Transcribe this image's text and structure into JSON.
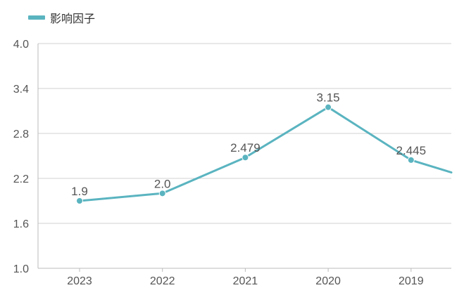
{
  "chart_data": {
    "type": "line",
    "categories": [
      "2023",
      "2022",
      "2021",
      "2020",
      "2019"
    ],
    "series": [
      {
        "name": "影响因子",
        "values": [
          1.9,
          2.0,
          2.479,
          3.15,
          2.445
        ],
        "color": "#5ab4c0"
      }
    ],
    "data_labels": [
      "1.9",
      "2.0",
      "2.479",
      "3.15",
      "2.445"
    ],
    "continuation_value": 2.28,
    "ylim": [
      1.0,
      4.0
    ],
    "yticks": [
      "1.0",
      "1.6",
      "2.2",
      "2.8",
      "3.4",
      "4.0"
    ],
    "grid": true,
    "legend_position": "top-left",
    "title": "",
    "xlabel": "",
    "ylabel": ""
  }
}
